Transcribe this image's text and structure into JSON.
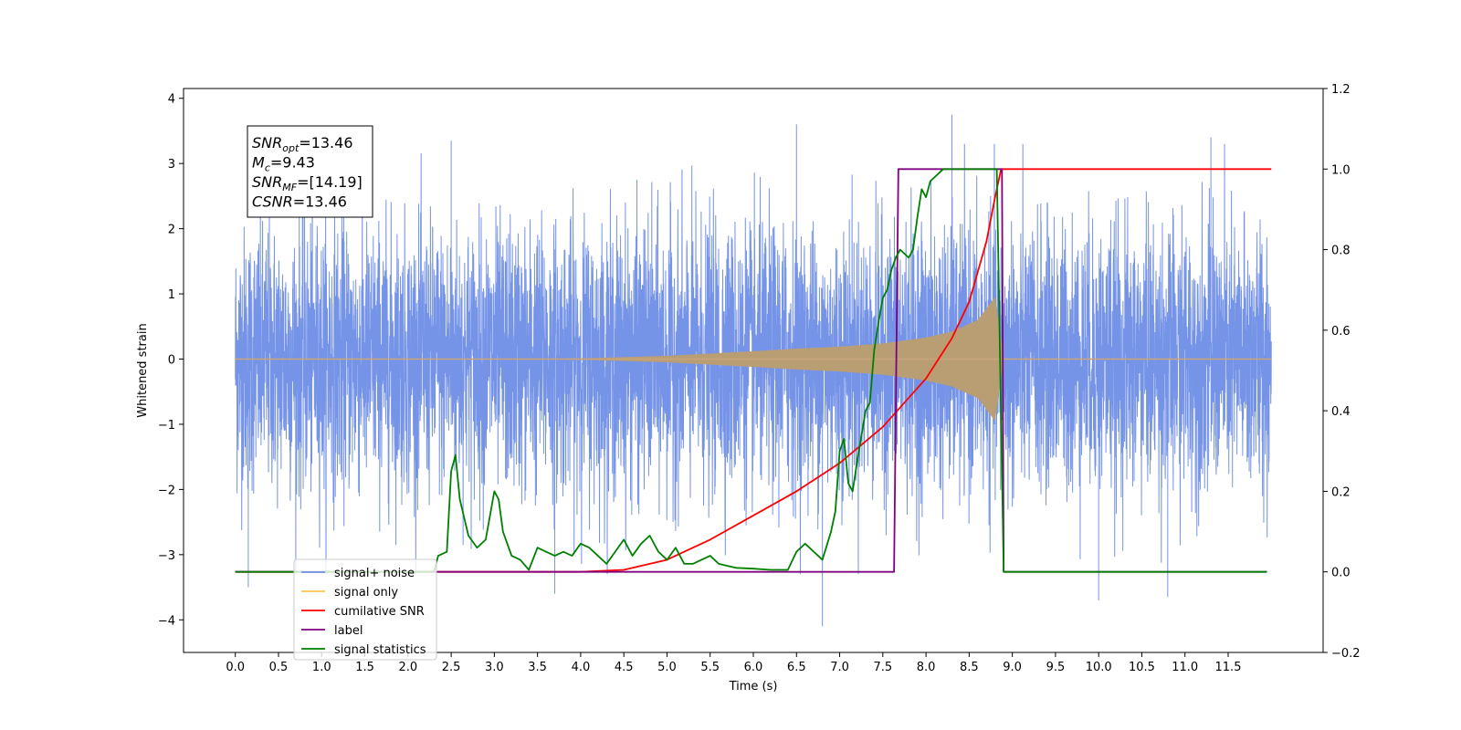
{
  "chart_data": {
    "type": "line",
    "title": "",
    "xlabel": "Time (s)",
    "ylabel": "Whitened strain",
    "y2label": "",
    "xlim": [
      -0.6,
      12.6
    ],
    "ylim": [
      -4.5,
      4.15
    ],
    "y2lim": [
      -0.2,
      1.2
    ],
    "xticks": [
      "0.0",
      "0.5",
      "1.0",
      "1.5",
      "2.0",
      "2.5",
      "3.0",
      "3.5",
      "4.0",
      "4.5",
      "5.0",
      "5.5",
      "6.0",
      "6.5",
      "7.0",
      "7.5",
      "8.0",
      "8.5",
      "9.0",
      "9.5",
      "10.0",
      "10.5",
      "11.0",
      "11.5"
    ],
    "yticks": [
      "4",
      "3",
      "2",
      "1",
      "0",
      "−1",
      "−2",
      "−3",
      "−4"
    ],
    "y2ticks": [
      "1.2",
      "1.0",
      "0.8",
      "0.6",
      "0.4",
      "0.2",
      "0.0",
      "−0.2"
    ],
    "grid": false,
    "legend_position": "lower-left",
    "annotation": {
      "lines": [
        {
          "base": "SNR",
          "sub": "opt",
          "value": "=13.46"
        },
        {
          "base": "M",
          "sub": "c",
          "value": "=9.43"
        },
        {
          "base": "SNR",
          "sub": "MF",
          "value": "=[14.19]"
        },
        {
          "base": "CSNR",
          "sub": "",
          "value": "=13.46"
        }
      ]
    },
    "noise_model": {
      "t_start": 0.0,
      "t_end": 12.0,
      "std": 1.0,
      "notable_spikes": [
        [
          2.5,
          3.35
        ],
        [
          6.5,
          3.6
        ],
        [
          8.3,
          3.75
        ],
        [
          11.3,
          3.4
        ],
        [
          6.8,
          -4.1
        ],
        [
          0.15,
          -3.5
        ],
        [
          3.7,
          -3.6
        ],
        [
          10.0,
          -3.7
        ],
        [
          10.8,
          -3.65
        ]
      ]
    },
    "signal_envelope": {
      "t": [
        0.0,
        4.0,
        5.0,
        6.0,
        6.5,
        7.0,
        7.5,
        8.0,
        8.3,
        8.6,
        8.8,
        8.87,
        8.9,
        12.0
      ],
      "amplitude": [
        0.0,
        0.01,
        0.05,
        0.12,
        0.16,
        0.19,
        0.24,
        0.33,
        0.42,
        0.6,
        0.95,
        0.3,
        0.0,
        0.0
      ]
    },
    "series": [
      {
        "name": "signal+ noise",
        "color": "#6f8ee6",
        "axis": "left"
      },
      {
        "name": "signal only",
        "color": "#ffc44d",
        "axis": "left"
      },
      {
        "name": "cumilative SNR",
        "color": "#ff0000",
        "axis": "right",
        "x": [
          0.0,
          4.0,
          4.5,
          5.0,
          5.5,
          6.0,
          6.5,
          7.0,
          7.5,
          8.0,
          8.3,
          8.5,
          8.7,
          8.8,
          8.87,
          8.88,
          12.0
        ],
        "y": [
          0.0,
          0.0,
          0.005,
          0.03,
          0.08,
          0.14,
          0.2,
          0.27,
          0.36,
          0.48,
          0.58,
          0.67,
          0.82,
          0.93,
          1.0,
          1.0,
          1.0
        ]
      },
      {
        "name": "label",
        "color": "#800080",
        "axis": "right",
        "x": [
          0.0,
          7.63,
          7.68,
          8.88,
          8.9,
          11.95
        ],
        "y": [
          0.0,
          0.0,
          1.0,
          1.0,
          0.0,
          0.0
        ]
      },
      {
        "name": "signal statistics",
        "color": "#008000",
        "axis": "right",
        "x": [
          0.0,
          2.3,
          2.35,
          2.45,
          2.5,
          2.55,
          2.6,
          2.7,
          2.8,
          2.9,
          3.0,
          3.05,
          3.1,
          3.2,
          3.3,
          3.4,
          3.5,
          3.6,
          3.7,
          3.8,
          3.9,
          4.0,
          4.1,
          4.2,
          4.3,
          4.4,
          4.5,
          4.6,
          4.7,
          4.8,
          4.9,
          5.0,
          5.1,
          5.2,
          5.3,
          5.4,
          5.5,
          5.6,
          5.7,
          5.8,
          6.0,
          6.2,
          6.4,
          6.5,
          6.6,
          6.7,
          6.8,
          6.9,
          6.95,
          7.0,
          7.05,
          7.1,
          7.15,
          7.2,
          7.3,
          7.35,
          7.4,
          7.45,
          7.5,
          7.55,
          7.6,
          7.65,
          7.7,
          7.8,
          7.85,
          7.9,
          7.95,
          8.0,
          8.05,
          8.1,
          8.2,
          8.3,
          8.5,
          8.7,
          8.82,
          8.86,
          8.9,
          11.95
        ],
        "y": [
          0.0,
          0.0,
          0.04,
          0.05,
          0.25,
          0.29,
          0.18,
          0.09,
          0.06,
          0.08,
          0.2,
          0.18,
          0.1,
          0.04,
          0.03,
          0.005,
          0.06,
          0.05,
          0.04,
          0.05,
          0.04,
          0.07,
          0.06,
          0.04,
          0.02,
          0.05,
          0.08,
          0.04,
          0.07,
          0.09,
          0.05,
          0.03,
          0.06,
          0.02,
          0.02,
          0.03,
          0.04,
          0.02,
          0.015,
          0.01,
          0.008,
          0.005,
          0.005,
          0.05,
          0.07,
          0.05,
          0.03,
          0.1,
          0.15,
          0.3,
          0.33,
          0.22,
          0.2,
          0.27,
          0.4,
          0.42,
          0.55,
          0.62,
          0.68,
          0.7,
          0.75,
          0.78,
          0.8,
          0.78,
          0.8,
          0.88,
          0.95,
          0.93,
          0.97,
          0.98,
          1.0,
          1.0,
          1.0,
          1.0,
          1.0,
          0.5,
          0.0,
          0.0
        ]
      }
    ]
  }
}
